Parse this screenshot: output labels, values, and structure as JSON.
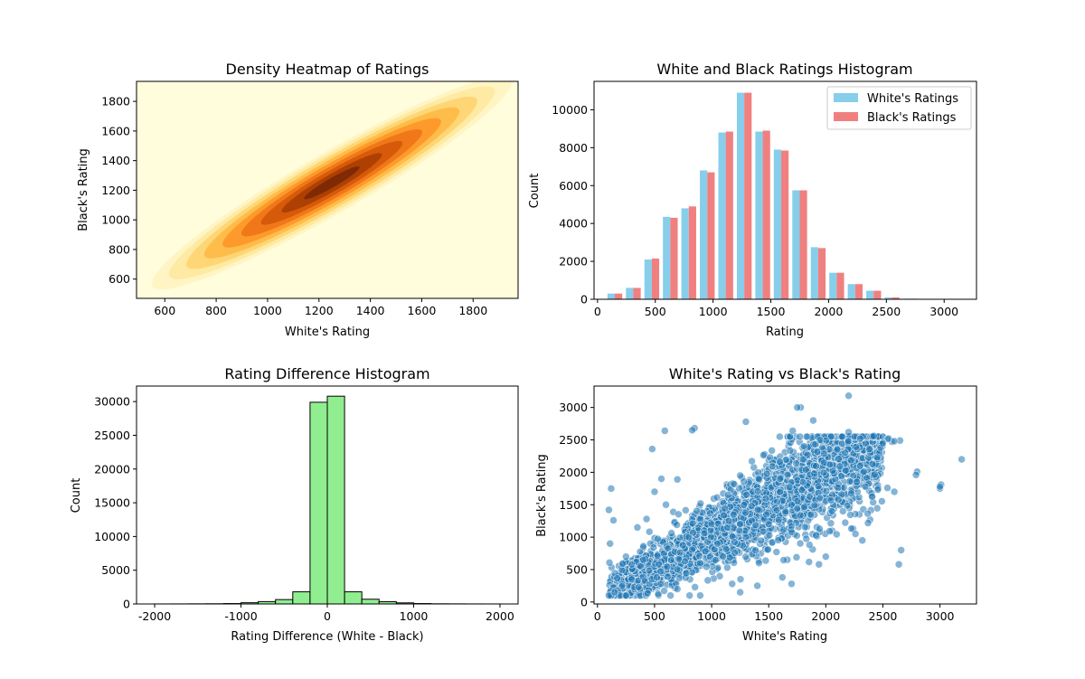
{
  "chart_data": [
    {
      "type": "heatmap",
      "title": "Density Heatmap of Ratings",
      "xlabel": "White's Rating",
      "ylabel": "Black's Rating",
      "xlim": [
        490,
        1975
      ],
      "ylim": [
        470,
        1935
      ],
      "xticks": [
        600,
        800,
        1000,
        1200,
        1400,
        1600,
        1800
      ],
      "yticks": [
        600,
        800,
        1000,
        1200,
        1400,
        1600,
        1800
      ],
      "colormap": "YlOrBr",
      "density": {
        "center": [
          1250,
          1250
        ],
        "diagonal_spread": 380,
        "perpendicular_spread": 55,
        "levels": [
          "#fffddb",
          "#fff5c4",
          "#feeaa2",
          "#fed676",
          "#febd4a",
          "#fe9a2c",
          "#f07818",
          "#d65a09",
          "#ad4002",
          "#7f2a04"
        ]
      }
    },
    {
      "type": "bar",
      "title": "White and Black Ratings Histogram",
      "xlabel": "Rating",
      "ylabel": "Count",
      "xlim": [
        -30,
        3280
      ],
      "ylim": [
        0,
        11500
      ],
      "xticks": [
        0,
        500,
        1000,
        1500,
        2000,
        2500,
        3000
      ],
      "yticks": [
        0,
        2000,
        4000,
        6000,
        8000,
        10000
      ],
      "bins": [
        150,
        310,
        470,
        630,
        790,
        950,
        1110,
        1270,
        1430,
        1590,
        1750,
        1910,
        2070,
        2230,
        2390,
        2550,
        2710,
        2870,
        3030,
        3190
      ],
      "series": [
        {
          "name": "White's Ratings",
          "color": "#87ceeb",
          "values": [
            300,
            600,
            2100,
            4350,
            4800,
            6800,
            8800,
            10900,
            8850,
            7900,
            5750,
            2750,
            1400,
            800,
            450,
            100,
            30,
            15,
            10,
            5
          ]
        },
        {
          "name": "Black's Ratings",
          "color": "#f08080",
          "values": [
            300,
            600,
            2150,
            4300,
            4900,
            6700,
            8850,
            10900,
            8900,
            7850,
            5750,
            2700,
            1400,
            800,
            450,
            100,
            30,
            15,
            10,
            5
          ]
        }
      ],
      "legend": "top-right"
    },
    {
      "type": "bar",
      "title": "Rating Difference Histogram",
      "xlabel": "Rating Difference (White - Black)",
      "ylabel": "Count",
      "xlim": [
        -2210,
        2210
      ],
      "ylim": [
        0,
        32300
      ],
      "xticks": [
        -2000,
        -1000,
        0,
        1000,
        2000
      ],
      "yticks": [
        0,
        5000,
        10000,
        15000,
        20000,
        25000,
        30000
      ],
      "bin_edges": [
        -2000,
        -1800,
        -1600,
        -1400,
        -1200,
        -1000,
        -800,
        -600,
        -400,
        -200,
        0,
        200,
        400,
        600,
        800,
        1000,
        1200,
        1400,
        1600,
        1800,
        2000
      ],
      "values": [
        5,
        10,
        20,
        30,
        60,
        180,
        350,
        650,
        1800,
        29900,
        30800,
        1800,
        700,
        330,
        160,
        60,
        25,
        15,
        8,
        4
      ],
      "color": "#90ee90"
    },
    {
      "type": "scatter",
      "title": "White's Rating vs Black's Rating",
      "xlabel": "White's Rating",
      "ylabel": "Black's Rating",
      "xlim": [
        -30,
        3320
      ],
      "ylim": [
        -30,
        3330
      ],
      "xticks": [
        0,
        500,
        1000,
        1500,
        2000,
        2500,
        3000
      ],
      "yticks": [
        0,
        500,
        1000,
        1500,
        2000,
        2500,
        3000
      ],
      "color": "#1f77b4",
      "points": [
        [
          1780,
          3000
        ],
        [
          1750,
          3000
        ],
        [
          2200,
          3180
        ],
        [
          1890,
          2800
        ],
        [
          3190,
          2200
        ],
        [
          3010,
          1810
        ],
        [
          3000,
          1750
        ],
        [
          2660,
          800
        ],
        [
          2640,
          580
        ],
        [
          2800,
          2010
        ],
        [
          2790,
          1960
        ],
        [
          2540,
          1760
        ],
        [
          2600,
          1700
        ],
        [
          850,
          2680
        ],
        [
          590,
          2640
        ],
        [
          830,
          2650
        ],
        [
          1300,
          2780
        ],
        [
          1710,
          2640
        ],
        [
          480,
          2360
        ],
        [
          1250,
          1950
        ],
        [
          2650,
          2490
        ],
        [
          2580,
          2470
        ],
        [
          2420,
          2560
        ],
        [
          2350,
          2440
        ],
        [
          2480,
          2380
        ],
        [
          2390,
          2300
        ],
        [
          2540,
          2510
        ],
        [
          100,
          1420
        ],
        [
          120,
          1750
        ],
        [
          140,
          1260
        ],
        [
          100,
          100
        ],
        [
          150,
          150
        ],
        [
          110,
          900
        ],
        [
          300,
          350
        ],
        [
          2150,
          1400
        ],
        [
          2260,
          1050
        ],
        [
          2320,
          950
        ],
        [
          2000,
          700
        ],
        [
          1940,
          580
        ],
        [
          1700,
          280
        ],
        [
          1620,
          380
        ],
        [
          1250,
          150
        ],
        [
          900,
          100
        ],
        [
          700,
          200
        ],
        [
          1180,
          280
        ],
        [
          1400,
          250
        ],
        [
          560,
          1900
        ],
        [
          700,
          1890
        ],
        [
          2300,
          2100
        ],
        [
          2100,
          2350
        ],
        [
          1950,
          2500
        ],
        [
          1800,
          2200
        ],
        [
          2200,
          2480
        ],
        [
          2450,
          2230
        ],
        [
          2380,
          2360
        ],
        [
          3000,
          1780
        ],
        [
          2550,
          2520
        ],
        [
          2600,
          2480
        ],
        [
          2500,
          2450
        ],
        [
          2200,
          2620
        ],
        [
          2300,
          2520
        ],
        [
          250,
          700
        ],
        [
          350,
          1150
        ],
        [
          430,
          1280
        ],
        [
          500,
          1700
        ],
        [
          600,
          1500
        ],
        [
          400,
          650
        ],
        [
          520,
          380
        ],
        [
          1050,
          900
        ],
        [
          1150,
          1250
        ],
        [
          1350,
          1480
        ],
        [
          1600,
          1700
        ],
        [
          1800,
          1850
        ],
        [
          1900,
          1980
        ],
        [
          1000,
          1200
        ],
        [
          1500,
          1200
        ],
        [
          1300,
          1000
        ],
        [
          1700,
          1500
        ],
        [
          800,
          1000
        ],
        [
          900,
          600
        ],
        [
          1100,
          700
        ],
        [
          1600,
          1900
        ]
      ]
    }
  ]
}
